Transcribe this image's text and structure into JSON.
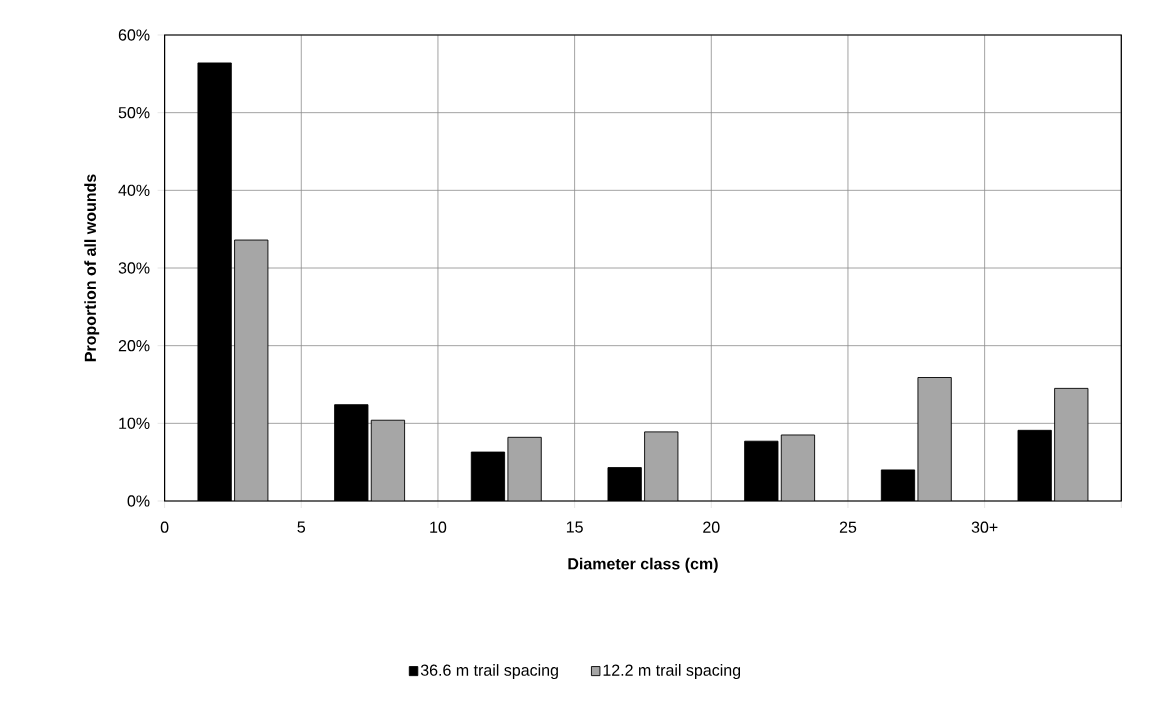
{
  "chart_data": {
    "type": "bar",
    "xlabel": "Diameter class (cm)",
    "ylabel": "Proportion of all wounds",
    "x": [
      2.5,
      7.5,
      12.5,
      17.5,
      22.5,
      27.5,
      32.5
    ],
    "series": [
      {
        "name": "36.6 m trail spacing",
        "color": "#000000",
        "values": [
          56.4,
          12.4,
          6.3,
          4.3,
          7.7,
          4.0,
          9.1
        ]
      },
      {
        "name": "12.2 m trail spacing",
        "color": "#a6a6a6",
        "values": [
          33.6,
          10.4,
          8.2,
          8.9,
          8.5,
          15.9,
          14.5
        ]
      }
    ],
    "xlim": [
      0,
      35
    ],
    "ylim": [
      0,
      60
    ],
    "xticks": [
      0,
      5,
      10,
      15,
      20,
      25,
      {
        "value": 30,
        "label": "30+"
      },
      {
        "value": 35,
        "label": null
      }
    ],
    "yticks": [
      {
        "value": 0,
        "label": "0%"
      },
      {
        "value": 10,
        "label": "10%"
      },
      {
        "value": 20,
        "label": "20%"
      },
      {
        "value": 30,
        "label": "30%"
      },
      {
        "value": 40,
        "label": "40%"
      },
      {
        "value": 50,
        "label": "50%"
      },
      {
        "value": 60,
        "label": "60%"
      }
    ],
    "grid": true,
    "legend": "bottom"
  }
}
